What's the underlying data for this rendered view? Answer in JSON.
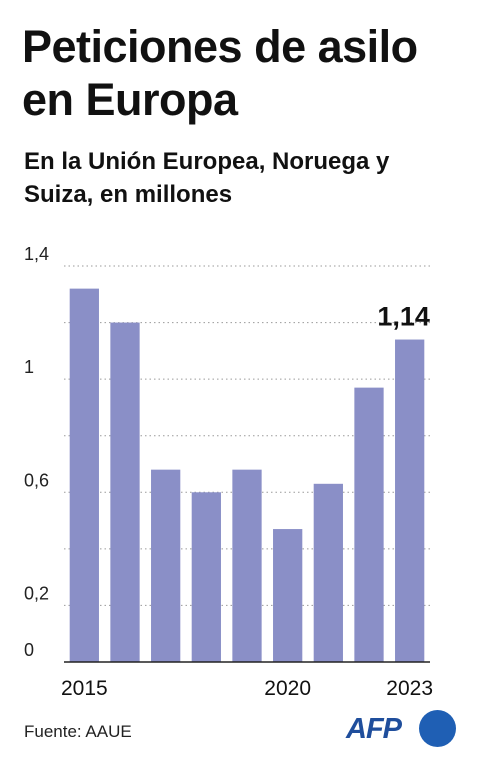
{
  "header": {
    "title": "Peticiones de asilo en Europa",
    "subtitle": "En la Unión Europea, Noruega y Suiza, en millones"
  },
  "footer": {
    "source": "Fuente: AAUE",
    "logo_text": "AFP"
  },
  "colors": {
    "bar": "#8a8fc7",
    "gridline": "#9a9a9a",
    "axis": "#222222",
    "logo_blue": "#1f5fb4"
  },
  "chart_data": {
    "type": "bar",
    "categories": [
      "2015",
      "2016",
      "2017",
      "2018",
      "2019",
      "2020",
      "2021",
      "2022",
      "2023"
    ],
    "values": [
      1.32,
      1.2,
      0.68,
      0.6,
      0.68,
      0.47,
      0.63,
      0.97,
      1.14
    ],
    "x_tick_labels": [
      "2015",
      "2020",
      "2023"
    ],
    "y_ticks": [
      0,
      0.2,
      0.6,
      1,
      1.4
    ],
    "y_tick_labels": [
      "0",
      "0,2",
      "0,6",
      "1",
      "1,4"
    ],
    "ylim": [
      0,
      1.4
    ],
    "highlight": {
      "category": "2023",
      "label": "1,14"
    },
    "grid": true,
    "gridlines_at": [
      0.2,
      0.4,
      0.6,
      0.8,
      1.0,
      1.2,
      1.4
    ],
    "legend": "none"
  }
}
